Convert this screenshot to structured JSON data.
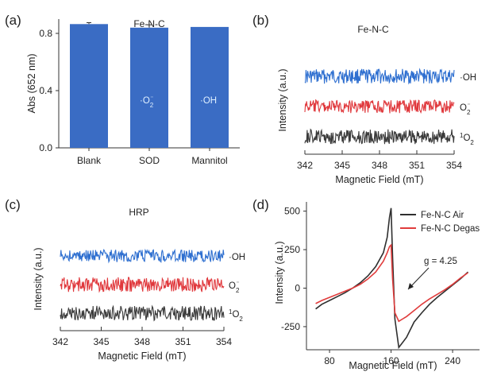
{
  "panels": {
    "a": {
      "label": "(a)"
    },
    "b": {
      "label": "(b)"
    },
    "c": {
      "label": "(c)"
    },
    "d": {
      "label": "(d)"
    }
  },
  "chart_data": [
    {
      "type": "bar",
      "panel": "(a)",
      "title": "Fe-N-C",
      "ylabel": "Abs (652 nm)",
      "xlabel": "",
      "categories": [
        "Blank",
        "SOD",
        "Mannitol"
      ],
      "values": [
        0.865,
        0.84,
        0.845
      ],
      "errors": [
        0.01,
        0.02,
        0
      ],
      "bar_labels": [
        "",
        "·O2⁻",
        "·OH"
      ],
      "ylim": [
        0,
        0.9
      ],
      "yticks": [
        "0.0",
        "0.4",
        "0.8"
      ],
      "ytick_values": [
        0,
        0.4,
        0.8
      ],
      "color": "#3a6cc4",
      "grid": false
    },
    {
      "type": "line",
      "panel": "(b)",
      "title": "Fe-N-C",
      "xlabel": "Magnetic Field (mT)",
      "ylabel": "Intensity (a.u.)",
      "xlim": [
        342,
        354
      ],
      "xticks": [
        "342",
        "345",
        "348",
        "351",
        "354"
      ],
      "xtick_values": [
        342,
        345,
        348,
        351,
        354
      ],
      "series": [
        {
          "name": "·OH",
          "color": "#2e6fd0",
          "offset": 2,
          "noise": 0.42
        },
        {
          "name": "O2⁻",
          "color": "#e0383c",
          "offset": 1,
          "noise": 0.38
        },
        {
          "name": "¹O2",
          "color": "#3a3a3a",
          "offset": 0,
          "noise": 0.42
        }
      ]
    },
    {
      "type": "line",
      "panel": "(c)",
      "title": "HRP",
      "xlabel": "Magnetic Field (mT)",
      "ylabel": "Intensity (a.u.)",
      "xlim": [
        342,
        354
      ],
      "xticks": [
        "342",
        "345",
        "348",
        "351",
        "354"
      ],
      "xtick_values": [
        342,
        345,
        348,
        351,
        354
      ],
      "series": [
        {
          "name": "·OH",
          "color": "#2e6fd0",
          "offset": 2,
          "noise": 0.36
        },
        {
          "name": "O2⁻",
          "color": "#e0383c",
          "offset": 1,
          "noise": 0.42
        },
        {
          "name": "¹O2",
          "color": "#3a3a3a",
          "offset": 0,
          "noise": 0.42
        }
      ]
    },
    {
      "type": "line",
      "panel": "(d)",
      "xlabel": "Magnetic Field (mT)",
      "ylabel": "Intensity (a.u.)",
      "xlim": [
        50,
        275
      ],
      "ylim": [
        -400,
        560
      ],
      "xticks": [
        "80",
        "160",
        "240"
      ],
      "xtick_values": [
        80,
        160,
        240
      ],
      "yticks": [
        "500",
        "250",
        "0",
        "-250"
      ],
      "ytick_values": [
        500,
        250,
        0,
        -250
      ],
      "legend": "top-right",
      "annotation": "g = 4.25",
      "series": [
        {
          "name": "Fe-N-C Air",
          "color": "#2f2f2f",
          "x": [
            62,
            70,
            80,
            90,
            100,
            110,
            120,
            130,
            140,
            150,
            155,
            158,
            160,
            162,
            165,
            170,
            180,
            190,
            200,
            210,
            220,
            230,
            240,
            250,
            260
          ],
          "y": [
            -135,
            -105,
            -80,
            -55,
            -30,
            0,
            35,
            80,
            140,
            230,
            330,
            460,
            520,
            200,
            -200,
            -385,
            -320,
            -220,
            -160,
            -105,
            -60,
            -20,
            20,
            60,
            105
          ]
        },
        {
          "name": "Fe-N-C Degas",
          "color": "#e03c3c",
          "x": [
            62,
            70,
            80,
            90,
            100,
            110,
            120,
            130,
            140,
            150,
            155,
            158,
            160,
            162,
            165,
            170,
            180,
            190,
            200,
            210,
            220,
            230,
            240,
            250,
            260
          ],
          "y": [
            -100,
            -80,
            -60,
            -40,
            -20,
            0,
            25,
            60,
            105,
            175,
            230,
            270,
            280,
            60,
            -160,
            -215,
            -185,
            -145,
            -105,
            -70,
            -40,
            -10,
            25,
            65,
            100
          ]
        }
      ]
    }
  ]
}
